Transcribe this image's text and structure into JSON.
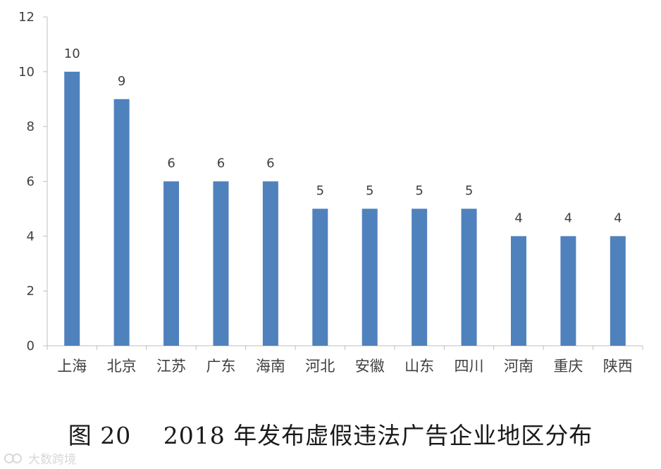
{
  "chart_data": {
    "type": "bar",
    "title": "图 20　 2018 年发布虚假违法广告企业地区分布",
    "categories": [
      "上海",
      "北京",
      "江苏",
      "广东",
      "海南",
      "河北",
      "安徽",
      "山东",
      "四川",
      "河南",
      "重庆",
      "陕西"
    ],
    "values": [
      10,
      9,
      6,
      6,
      6,
      5,
      5,
      5,
      5,
      4,
      4,
      4
    ],
    "data_labels": [
      "10",
      "9",
      "6",
      "6",
      "6",
      "5",
      "5",
      "5",
      "5",
      "4",
      "4",
      "4"
    ],
    "ylim": [
      0,
      12
    ],
    "yticks": [
      0,
      2,
      4,
      6,
      8,
      10,
      12
    ],
    "xlabel": "",
    "ylabel": "",
    "grid": false,
    "legend": "none",
    "bar_color": "#4f81bd",
    "axis_color": "#bfbfbf"
  },
  "watermark": {
    "text": "大数跨境"
  }
}
